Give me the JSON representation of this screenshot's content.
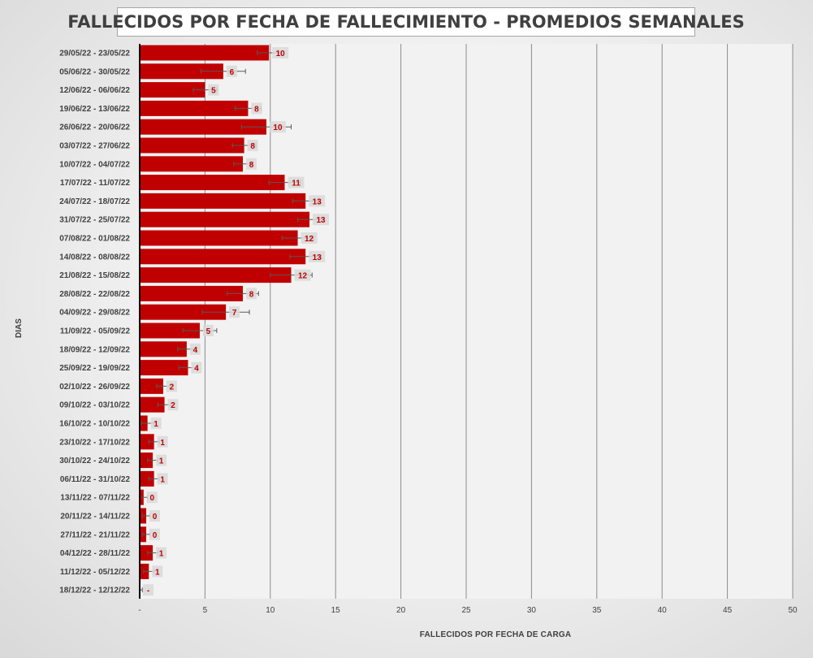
{
  "chart_data": {
    "type": "bar",
    "orientation": "horizontal",
    "title": "FALLECIDOS POR FECHA DE FALLECIMIENTO - PROMEDIOS SEMANALES",
    "xlabel": "FALLECIDOS POR FECHA DE CARGA",
    "ylabel": "DIAS",
    "xlim": [
      0,
      50
    ],
    "x_ticks": [
      "-",
      "5",
      "10",
      "15",
      "20",
      "25",
      "30",
      "35",
      "40",
      "45",
      "50"
    ],
    "grid": true,
    "bar_color": "#c00000",
    "label_color": "#c00000",
    "error_bars": true,
    "categories": [
      "29/05/22 - 23/05/22",
      "05/06/22 - 30/05/22",
      "12/06/22 - 06/06/22",
      "19/06/22 - 13/06/22",
      "26/06/22 - 20/06/22",
      "03/07/22 - 27/06/22",
      "10/07/22 - 04/07/22",
      "17/07/22 - 11/07/22",
      "24/07/22 - 18/07/22",
      "31/07/22 - 25/07/22",
      "07/08/22 - 01/08/22",
      "14/08/22 - 08/08/22",
      "21/08/22 - 15/08/22",
      "28/08/22 - 22/08/22",
      "04/09/22 - 29/08/22",
      "11/09/22 - 05/09/22",
      "18/09/22 - 12/09/22",
      "25/09/22 - 19/09/22",
      "02/10/22 - 26/09/22",
      "09/10/22 - 03/10/22",
      "16/10/22 - 10/10/22",
      "23/10/22 - 17/10/22",
      "30/10/22 - 24/10/22",
      "06/11/22 - 31/10/22",
      "13/11/22 - 07/11/22",
      "20/11/22 - 14/11/22",
      "27/11/22 - 21/11/22",
      "04/12/22 - 28/11/22",
      "11/12/22 - 05/12/22",
      "18/12/22 - 12/12/22"
    ],
    "values": [
      9.9,
      6.4,
      5.0,
      8.3,
      9.7,
      8.0,
      7.9,
      11.1,
      12.7,
      13.0,
      12.1,
      12.7,
      11.6,
      7.9,
      6.6,
      4.6,
      3.6,
      3.7,
      1.8,
      1.9,
      0.6,
      1.1,
      1.0,
      1.1,
      0.3,
      0.5,
      0.5,
      1.0,
      0.7,
      0.0
    ],
    "error": [
      0.9,
      1.7,
      0.9,
      1.0,
      1.9,
      0.9,
      0.7,
      1.2,
      1.0,
      0.9,
      1.2,
      1.2,
      1.6,
      1.2,
      1.8,
      1.3,
      0.7,
      0.7,
      0.5,
      0.5,
      0.5,
      0.4,
      0.4,
      0.4,
      0.3,
      0.3,
      0.3,
      0.4,
      0.4,
      0.2
    ],
    "data_labels": [
      "10",
      "6",
      "5",
      "8",
      "10",
      "8",
      "8",
      "11",
      "13",
      "13",
      "12",
      "13",
      "12",
      "8",
      "7",
      "5",
      "4",
      "4",
      "2",
      "2",
      "1",
      "1",
      "1",
      "1",
      "0",
      "0",
      "0",
      "1",
      "1",
      "-"
    ]
  }
}
